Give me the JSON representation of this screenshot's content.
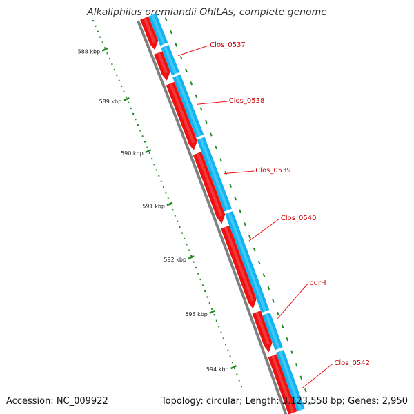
{
  "title": "Alkaliphilus oremlandii OhILAs, complete genome",
  "footer": {
    "accession": "Accession: NC_009922",
    "topology": "Topology: circular; Length: 3,123,558 bp; Genes: 2,950"
  },
  "colors": {
    "forward_cds": "#ee1111",
    "reverse_track": "#11b4f0",
    "backbone": "#808080",
    "tick": "#228822",
    "label_line": "#ee1111"
  },
  "scale_labels": [
    "588 kbp",
    "589 kbp",
    "590 kbp",
    "591 kbp",
    "592 kbp",
    "593 kbp",
    "594 kbp"
  ],
  "genes": [
    "Clos_0537",
    "Clos_0538",
    "Clos_0539",
    "Clos_0540",
    "purH",
    "Clos_0542"
  ]
}
